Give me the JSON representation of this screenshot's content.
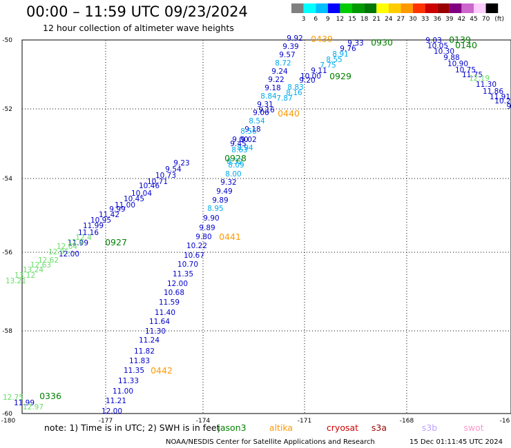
{
  "header": {
    "title": "00:00 – 11:59 UTC 09/23/2024",
    "subtitle": "12 hour collection of altimeter wave heights"
  },
  "legend": {
    "ticks": [
      "3",
      "6",
      "9",
      "12",
      "15",
      "18",
      "21",
      "24",
      "27",
      "30",
      "33",
      "36",
      "39",
      "42",
      "45",
      "70"
    ],
    "unit": "(ft)",
    "colors": [
      "#808080",
      "#00ffff",
      "#00bfff",
      "#0000ff",
      "#00cc00",
      "#009900",
      "#007700",
      "#ffff00",
      "#ffcc00",
      "#ff9900",
      "#ff3300",
      "#cc0000",
      "#990000",
      "#800080",
      "#cc66cc",
      "#ffccff",
      "#000000"
    ]
  },
  "axes": {
    "x_ticks": [
      "-180",
      "-177",
      "-174",
      "-171",
      "-168",
      "-16"
    ],
    "y_ticks": [
      "-50",
      "-52",
      "-54",
      "-56",
      "-58",
      "-60"
    ]
  },
  "footer": {
    "note": "note: 1) Time is in UTC; 2) SWH is in feet",
    "satellites": [
      {
        "name": "jason3",
        "color": "#008000"
      },
      {
        "name": "altika",
        "color": "#ff9900"
      },
      {
        "name": "cryosat",
        "color": "#cc0000"
      },
      {
        "name": "s3a",
        "color": "#990000"
      },
      {
        "name": "s3b",
        "color": "#c0a0ff"
      },
      {
        "name": "swot",
        "color": "#ff99cc"
      }
    ],
    "credit": "NOAA/NESDIS Center for Satellite Applications and Research",
    "timestamp": "15 Dec 01:11:45 UTC 2024"
  },
  "map": {
    "time_labels": [
      {
        "text": "0439",
        "color": "#ff9900"
      },
      {
        "text": "0930",
        "color": "#008000"
      },
      {
        "text": "0139",
        "color": "#008000"
      },
      {
        "text": "0140",
        "color": "#008000"
      },
      {
        "text": "0929",
        "color": "#008000"
      },
      {
        "text": "0440",
        "color": "#ff9900"
      },
      {
        "text": "0928",
        "color": "#008000"
      },
      {
        "text": "0927",
        "color": "#008000"
      },
      {
        "text": "0441",
        "color": "#ff9900"
      },
      {
        "text": "0442",
        "color": "#ff9900"
      },
      {
        "text": "0336",
        "color": "#008000"
      }
    ],
    "wave_labels": [
      {
        "text": "9.92",
        "color": "#0000cc"
      },
      {
        "text": "9.39",
        "color": "#0000cc"
      },
      {
        "text": "9.57",
        "color": "#0000cc"
      },
      {
        "text": "8.72",
        "color": "#00aaee"
      },
      {
        "text": "9.24",
        "color": "#0000cc"
      },
      {
        "text": "9.22",
        "color": "#0000cc"
      },
      {
        "text": "9.18",
        "color": "#0000cc"
      },
      {
        "text": "9.31",
        "color": "#0000cc"
      },
      {
        "text": "9.06",
        "color": "#0000cc"
      },
      {
        "text": "8.84",
        "color": "#00aaee"
      },
      {
        "text": "8.54",
        "color": "#00aaee"
      },
      {
        "text": "9.16",
        "color": "#0000cc"
      },
      {
        "text": "9.18",
        "color": "#0000cc"
      },
      {
        "text": "8.56",
        "color": "#00aaee"
      },
      {
        "text": "9.00",
        "color": "#0000cc"
      },
      {
        "text": "9.02",
        "color": "#0000cc"
      },
      {
        "text": "8.94",
        "color": "#00aaee"
      },
      {
        "text": "9.45",
        "color": "#0000cc"
      },
      {
        "text": "8.63",
        "color": "#00aaee"
      },
      {
        "text": "8.32",
        "color": "#00aaee"
      },
      {
        "text": "8.09",
        "color": "#00aaee"
      },
      {
        "text": "8.00",
        "color": "#00aaee"
      },
      {
        "text": "9.32",
        "color": "#0000cc"
      },
      {
        "text": "9.49",
        "color": "#0000cc"
      },
      {
        "text": "9.89",
        "color": "#0000cc"
      },
      {
        "text": "8.95",
        "color": "#00aaee"
      },
      {
        "text": "9.90",
        "color": "#0000cc"
      },
      {
        "text": "9.89",
        "color": "#0000cc"
      },
      {
        "text": "9.80",
        "color": "#0000cc"
      },
      {
        "text": "10.22",
        "color": "#0000cc"
      },
      {
        "text": "10.67",
        "color": "#0000cc"
      },
      {
        "text": "10.70",
        "color": "#0000cc"
      },
      {
        "text": "11.35",
        "color": "#0000cc"
      },
      {
        "text": "12.00",
        "color": "#0000cc"
      },
      {
        "text": "10.68",
        "color": "#0000cc"
      },
      {
        "text": "11.59",
        "color": "#0000cc"
      },
      {
        "text": "11.40",
        "color": "#0000cc"
      },
      {
        "text": "11.64",
        "color": "#0000cc"
      },
      {
        "text": "11.30",
        "color": "#0000cc"
      },
      {
        "text": "11.24",
        "color": "#0000cc"
      },
      {
        "text": "11.82",
        "color": "#0000cc"
      },
      {
        "text": "11.83",
        "color": "#0000cc"
      },
      {
        "text": "11.35",
        "color": "#0000cc"
      },
      {
        "text": "11.33",
        "color": "#0000cc"
      },
      {
        "text": "11.00",
        "color": "#0000cc"
      },
      {
        "text": "11.21",
        "color": "#0000cc"
      },
      {
        "text": "12.00",
        "color": "#0000cc"
      },
      {
        "text": "9.23",
        "color": "#0000cc"
      },
      {
        "text": "9.54",
        "color": "#0000cc"
      },
      {
        "text": "10.73",
        "color": "#0000cc"
      },
      {
        "text": "10.71",
        "color": "#0000cc"
      },
      {
        "text": "10.46",
        "color": "#0000cc"
      },
      {
        "text": "10.04",
        "color": "#0000cc"
      },
      {
        "text": "10.45",
        "color": "#0000cc"
      },
      {
        "text": "11.00",
        "color": "#0000cc"
      },
      {
        "text": "9.99",
        "color": "#0000cc"
      },
      {
        "text": "11.42",
        "color": "#0000cc"
      },
      {
        "text": "10.95",
        "color": "#0000cc"
      },
      {
        "text": "11.99",
        "color": "#0000cc"
      },
      {
        "text": "11.16",
        "color": "#0000cc"
      },
      {
        "text": "12.00",
        "color": "#0000cc"
      },
      {
        "text": "11.99",
        "color": "#0000cc"
      },
      {
        "text": "9.33",
        "color": "#0000cc"
      },
      {
        "text": "9.76",
        "color": "#0000cc"
      },
      {
        "text": "8.91",
        "color": "#00aaee"
      },
      {
        "text": "8.55",
        "color": "#00aaee"
      },
      {
        "text": "7.75",
        "color": "#00aaee"
      },
      {
        "text": "9.11",
        "color": "#0000cc"
      },
      {
        "text": "10.00",
        "color": "#0000cc"
      },
      {
        "text": "9.20",
        "color": "#0000cc"
      },
      {
        "text": "8.83",
        "color": "#00aaee"
      },
      {
        "text": "8.16",
        "color": "#00aaee"
      },
      {
        "text": "7.87",
        "color": "#00aaee"
      },
      {
        "text": "9.03",
        "color": "#0000cc"
      },
      {
        "text": "10.05",
        "color": "#0000cc"
      },
      {
        "text": "10.30",
        "color": "#0000cc"
      },
      {
        "text": "9.88",
        "color": "#0000cc"
      },
      {
        "text": "10.90",
        "color": "#0000cc"
      },
      {
        "text": "10.75",
        "color": "#0000cc"
      },
      {
        "text": "11.75",
        "color": "#0000cc"
      },
      {
        "text": "12.19",
        "color": "#66dd66"
      },
      {
        "text": "11.30",
        "color": "#0000cc"
      },
      {
        "text": "11.86",
        "color": "#0000cc"
      },
      {
        "text": "11.91",
        "color": "#0000cc"
      },
      {
        "text": "10.2",
        "color": "#0000cc"
      },
      {
        "text": "9",
        "color": "#0000cc"
      },
      {
        "text": "12.4",
        "color": "#66dd66"
      },
      {
        "text": "12.6",
        "color": "#66dd66"
      },
      {
        "text": "12.64",
        "color": "#66dd66"
      },
      {
        "text": "12.95",
        "color": "#66dd66"
      },
      {
        "text": "12.62",
        "color": "#66dd66"
      },
      {
        "text": "12.63",
        "color": "#66dd66"
      },
      {
        "text": "13.24",
        "color": "#66dd66"
      },
      {
        "text": "13.12",
        "color": "#66dd66"
      },
      {
        "text": "13.21",
        "color": "#66dd66"
      },
      {
        "text": "12.75",
        "color": "#66dd66"
      },
      {
        "text": "11.99",
        "color": "#0000cc"
      },
      {
        "text": "12.97",
        "color": "#66dd66"
      }
    ]
  }
}
